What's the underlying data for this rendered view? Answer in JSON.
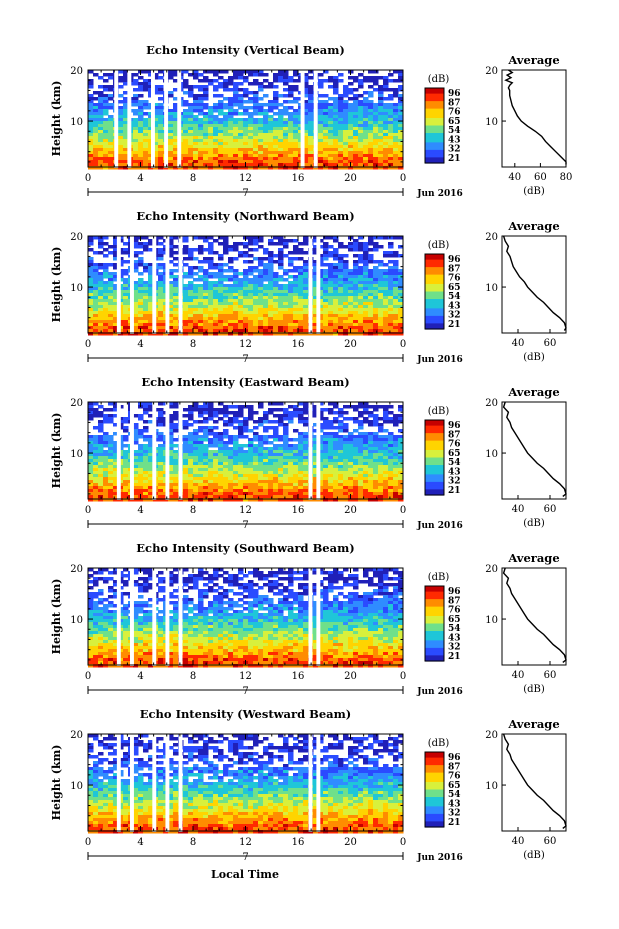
{
  "figure": {
    "xlabel": "Local Time",
    "date_label": "Jun 2016",
    "day_label": "7"
  },
  "colorbar": {
    "unit_label": "(dB)",
    "ticks": [
      "96",
      "87",
      "76",
      "65",
      "54",
      "43",
      "32",
      "21"
    ],
    "colors": [
      "#c60000",
      "#ff2a00",
      "#ff8c00",
      "#ffd400",
      "#d8f03c",
      "#6fe08a",
      "#1fc6d8",
      "#2f8cff",
      "#2a4bff",
      "#2020b8"
    ]
  },
  "chart_data": [
    {
      "type": "heatmap",
      "title": "Echo Intensity (Vertical Beam)",
      "ylabel": "Height (km)",
      "x_ticks": [
        "0",
        "4",
        "8",
        "12",
        "16",
        "20",
        "0"
      ],
      "y_ticks": [
        "20",
        "10"
      ],
      "xlim": [
        0,
        24
      ],
      "ylim": [
        1,
        20
      ],
      "colorbar_ticks": [
        "96",
        "87",
        "76",
        "65",
        "54",
        "43",
        "32",
        "21"
      ],
      "gaps_hours": [
        [
          2.0,
          2.3
        ],
        [
          3.0,
          3.3
        ],
        [
          4.8,
          5.1
        ],
        [
          5.8,
          6.1
        ],
        [
          6.8,
          7.1
        ],
        [
          16.2,
          16.5
        ],
        [
          17.2,
          17.5
        ]
      ],
      "profile": {
        "title": "Average",
        "xlabel": "(dB)",
        "x_ticks": [
          "40",
          "60",
          "80"
        ],
        "xlim": [
          30,
          80
        ],
        "y_ticks": [
          "20",
          "10"
        ],
        "points": [
          [
            35,
            20
          ],
          [
            38,
            19.5
          ],
          [
            34,
            19
          ],
          [
            37,
            18.5
          ],
          [
            33,
            18
          ],
          [
            38,
            17.5
          ],
          [
            36,
            17
          ],
          [
            35,
            16.5
          ],
          [
            36,
            16
          ],
          [
            36,
            15
          ],
          [
            37,
            14
          ],
          [
            38,
            13
          ],
          [
            40,
            12
          ],
          [
            42,
            11
          ],
          [
            45,
            10
          ],
          [
            50,
            9
          ],
          [
            56,
            8
          ],
          [
            61,
            7
          ],
          [
            64,
            6
          ],
          [
            68,
            5
          ],
          [
            72,
            4
          ],
          [
            76,
            3
          ],
          [
            80,
            2
          ],
          [
            80,
            1.5
          ]
        ]
      }
    },
    {
      "type": "heatmap",
      "title": "Echo Intensity (Northward Beam)",
      "ylabel": "Height (km)",
      "x_ticks": [
        "0",
        "4",
        "8",
        "12",
        "16",
        "20",
        "0"
      ],
      "y_ticks": [
        "20",
        "10"
      ],
      "xlim": [
        0,
        24
      ],
      "ylim": [
        1,
        20
      ],
      "colorbar_ticks": [
        "96",
        "87",
        "76",
        "65",
        "54",
        "43",
        "32",
        "21"
      ],
      "gaps_hours": [
        [
          2.2,
          2.5
        ],
        [
          3.2,
          3.5
        ],
        [
          4.9,
          5.2
        ],
        [
          5.9,
          6.2
        ],
        [
          6.9,
          7.2
        ],
        [
          16.8,
          17.1
        ],
        [
          17.4,
          17.7
        ]
      ],
      "profile": {
        "title": "Average",
        "xlabel": "(dB)",
        "x_ticks": [
          "40",
          "60"
        ],
        "xlim": [
          30,
          70
        ],
        "y_ticks": [
          "20",
          "10"
        ],
        "points": [
          [
            31,
            20
          ],
          [
            32,
            19
          ],
          [
            34,
            18
          ],
          [
            33,
            17
          ],
          [
            35,
            16
          ],
          [
            36,
            15
          ],
          [
            37,
            14
          ],
          [
            39,
            13
          ],
          [
            41,
            12
          ],
          [
            44,
            11
          ],
          [
            46,
            10
          ],
          [
            49,
            9
          ],
          [
            52,
            8
          ],
          [
            56,
            7
          ],
          [
            59,
            6
          ],
          [
            62,
            5
          ],
          [
            66,
            4
          ],
          [
            69,
            3
          ],
          [
            70,
            2
          ],
          [
            69,
            1.5
          ]
        ]
      }
    },
    {
      "type": "heatmap",
      "title": "Echo Intensity (Eastward Beam)",
      "ylabel": "Height (km)",
      "x_ticks": [
        "0",
        "4",
        "8",
        "12",
        "16",
        "20",
        "0"
      ],
      "y_ticks": [
        "20",
        "10"
      ],
      "xlim": [
        0,
        24
      ],
      "ylim": [
        1,
        20
      ],
      "colorbar_ticks": [
        "96",
        "87",
        "76",
        "65",
        "54",
        "43",
        "32",
        "21"
      ],
      "gaps_hours": [
        [
          2.2,
          2.5
        ],
        [
          3.2,
          3.5
        ],
        [
          4.9,
          5.2
        ],
        [
          5.9,
          6.2
        ],
        [
          6.9,
          7.2
        ],
        [
          16.8,
          17.1
        ],
        [
          17.4,
          17.7
        ]
      ],
      "profile": {
        "title": "Average",
        "xlabel": "(dB)",
        "x_ticks": [
          "40",
          "60"
        ],
        "xlim": [
          30,
          70
        ],
        "y_ticks": [
          "20",
          "10"
        ],
        "points": [
          [
            32,
            20
          ],
          [
            31,
            19
          ],
          [
            34,
            18
          ],
          [
            33,
            17
          ],
          [
            35,
            16
          ],
          [
            36,
            15
          ],
          [
            38,
            14
          ],
          [
            40,
            13
          ],
          [
            42,
            12
          ],
          [
            44,
            11
          ],
          [
            46,
            10
          ],
          [
            49,
            9
          ],
          [
            52,
            8
          ],
          [
            56,
            7
          ],
          [
            59,
            6
          ],
          [
            62,
            5
          ],
          [
            66,
            4
          ],
          [
            69,
            3
          ],
          [
            70,
            2
          ],
          [
            68,
            1.5
          ]
        ]
      }
    },
    {
      "type": "heatmap",
      "title": "Echo Intensity (Southward Beam)",
      "ylabel": "Height (km)",
      "x_ticks": [
        "0",
        "4",
        "8",
        "12",
        "16",
        "20",
        "0"
      ],
      "y_ticks": [
        "20",
        "10"
      ],
      "xlim": [
        0,
        24
      ],
      "ylim": [
        1,
        20
      ],
      "colorbar_ticks": [
        "96",
        "87",
        "76",
        "65",
        "54",
        "43",
        "32",
        "21"
      ],
      "gaps_hours": [
        [
          2.2,
          2.5
        ],
        [
          3.2,
          3.5
        ],
        [
          4.9,
          5.2
        ],
        [
          5.9,
          6.2
        ],
        [
          6.9,
          7.2
        ],
        [
          16.8,
          17.1
        ],
        [
          17.4,
          17.7
        ]
      ],
      "profile": {
        "title": "Average",
        "xlabel": "(dB)",
        "x_ticks": [
          "40",
          "60"
        ],
        "xlim": [
          30,
          70
        ],
        "y_ticks": [
          "20",
          "10"
        ],
        "points": [
          [
            32,
            20
          ],
          [
            31,
            19
          ],
          [
            34,
            18
          ],
          [
            33,
            17
          ],
          [
            35,
            16
          ],
          [
            36,
            15
          ],
          [
            38,
            14
          ],
          [
            40,
            13
          ],
          [
            42,
            12
          ],
          [
            44,
            11
          ],
          [
            46,
            10
          ],
          [
            49,
            9
          ],
          [
            52,
            8
          ],
          [
            56,
            7
          ],
          [
            59,
            6
          ],
          [
            62,
            5
          ],
          [
            66,
            4
          ],
          [
            69,
            3
          ],
          [
            70,
            2
          ],
          [
            68,
            1.5
          ]
        ]
      }
    },
    {
      "type": "heatmap",
      "title": "Echo Intensity (Westward Beam)",
      "ylabel": "Height (km)",
      "x_ticks": [
        "0",
        "4",
        "8",
        "12",
        "16",
        "20",
        "0"
      ],
      "y_ticks": [
        "20",
        "10"
      ],
      "xlim": [
        0,
        24
      ],
      "ylim": [
        1,
        20
      ],
      "colorbar_ticks": [
        "96",
        "87",
        "76",
        "65",
        "54",
        "43",
        "32",
        "21"
      ],
      "gaps_hours": [
        [
          2.2,
          2.5
        ],
        [
          3.2,
          3.5
        ],
        [
          4.9,
          5.2
        ],
        [
          5.9,
          6.2
        ],
        [
          6.9,
          7.2
        ],
        [
          16.8,
          17.1
        ],
        [
          17.4,
          17.7
        ]
      ],
      "profile": {
        "title": "Average",
        "xlabel": "(dB)",
        "x_ticks": [
          "40",
          "60"
        ],
        "xlim": [
          30,
          70
        ],
        "y_ticks": [
          "20",
          "10"
        ],
        "points": [
          [
            31,
            20
          ],
          [
            32,
            19
          ],
          [
            34,
            18
          ],
          [
            33,
            17
          ],
          [
            35,
            16
          ],
          [
            36,
            15
          ],
          [
            38,
            14
          ],
          [
            40,
            13
          ],
          [
            42,
            12
          ],
          [
            44,
            11
          ],
          [
            46,
            10
          ],
          [
            49,
            9
          ],
          [
            52,
            8
          ],
          [
            56,
            7
          ],
          [
            59,
            6
          ],
          [
            62,
            5
          ],
          [
            66,
            4
          ],
          [
            69,
            3
          ],
          [
            70,
            2
          ],
          [
            68,
            1.5
          ]
        ]
      }
    }
  ]
}
